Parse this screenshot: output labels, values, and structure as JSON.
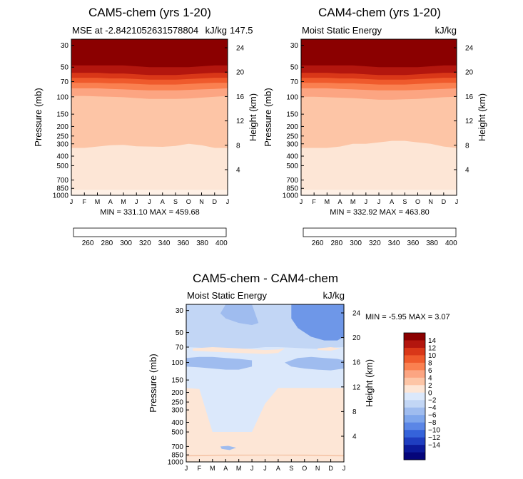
{
  "panels": [
    {
      "id": "p1",
      "title": "CAM5-chem (yrs 1-20)",
      "left_label": "MSE at -2.8421052631578804",
      "right_label": "kJ/kg",
      "overlap_label": "147.5",
      "min_max_text": "MIN = 331.10 MAX = 459.68",
      "bands": [
        {
          "top": [
            30,
            30,
            30,
            30,
            30,
            30,
            30,
            30,
            30,
            30,
            30,
            30,
            30
          ],
          "color": "#8b0000"
        },
        {
          "top": [
            48,
            48,
            48,
            48,
            48,
            49,
            50,
            50,
            50,
            50,
            49,
            48,
            48
          ],
          "color": "#b3160e"
        },
        {
          "top": [
            57,
            57,
            57,
            58,
            58,
            59,
            60,
            60,
            60,
            59,
            58,
            57,
            57
          ],
          "color": "#d93718"
        },
        {
          "top": [
            64,
            64,
            64,
            65,
            65,
            66,
            67,
            67,
            67,
            66,
            65,
            64,
            64
          ],
          "color": "#ef5a2c"
        },
        {
          "top": [
            72,
            72,
            72,
            73,
            73,
            74,
            75,
            75,
            75,
            74,
            73,
            72,
            72
          ],
          "color": "#fa8050"
        },
        {
          "top": [
            82,
            82,
            82,
            83,
            84,
            85,
            86,
            86,
            86,
            85,
            84,
            83,
            82
          ],
          "color": "#fca582"
        },
        {
          "top": [
            98,
            98,
            99,
            100,
            101,
            103,
            105,
            105,
            105,
            104,
            102,
            100,
            98
          ],
          "color": "#fdc5a6"
        },
        {
          "top": [
            330,
            330,
            320,
            310,
            308,
            318,
            320,
            322,
            315,
            300,
            310,
            330,
            330
          ],
          "color": "#fde6d6"
        },
        {
          "top": [
            880,
            880,
            880,
            880,
            880,
            880,
            880,
            880,
            880,
            880,
            880,
            880,
            880
          ],
          "color": "#fef0e6"
        }
      ]
    },
    {
      "id": "p2",
      "title": "CAM4-chem (yrs 1-20)",
      "left_label": "Moist Static Energy",
      "right_label": "kJ/kg",
      "min_max_text": "MIN = 332.92 MAX = 463.80",
      "bands": [
        {
          "top": [
            30,
            30,
            30,
            30,
            30,
            30,
            30,
            30,
            30,
            30,
            30,
            30,
            30
          ],
          "color": "#8b0000"
        },
        {
          "top": [
            48,
            48,
            48,
            48,
            48,
            49,
            50,
            50,
            50,
            50,
            49,
            48,
            48
          ],
          "color": "#b3160e"
        },
        {
          "top": [
            57,
            57,
            57,
            58,
            58,
            59,
            60,
            60,
            60,
            59,
            58,
            57,
            57
          ],
          "color": "#d93718"
        },
        {
          "top": [
            64,
            64,
            64,
            65,
            65,
            66,
            67,
            67,
            67,
            66,
            65,
            64,
            64
          ],
          "color": "#ef5a2c"
        },
        {
          "top": [
            72,
            72,
            72,
            73,
            73,
            74,
            75,
            75,
            75,
            74,
            73,
            72,
            72
          ],
          "color": "#fa8050"
        },
        {
          "top": [
            82,
            82,
            82,
            83,
            84,
            85,
            86,
            86,
            86,
            85,
            84,
            83,
            82
          ],
          "color": "#fca582"
        },
        {
          "top": [
            100,
            100,
            101,
            102,
            103,
            105,
            107,
            107,
            106,
            105,
            103,
            101,
            100
          ],
          "color": "#fdc5a6"
        },
        {
          "top": [
            330,
            330,
            330,
            320,
            300,
            300,
            290,
            280,
            280,
            290,
            300,
            320,
            330
          ],
          "color": "#fde6d6"
        },
        {
          "top": [
            880,
            880,
            880,
            880,
            880,
            880,
            880,
            880,
            880,
            880,
            880,
            880,
            880
          ],
          "color": "#fef0e6"
        }
      ]
    },
    {
      "id": "p3",
      "title": "CAM5-chem - CAM4-chem",
      "left_label": "Moist Static Energy",
      "right_label": "kJ/kg",
      "min_max_text": "MIN =    -5.95 MAX =     3.07",
      "bands": [
        {
          "top": [
            30,
            30,
            30,
            30,
            30,
            30,
            30,
            30,
            30,
            30,
            30,
            30,
            30
          ],
          "color": "#c2d6f5"
        },
        {
          "top": [
            70,
            71,
            72,
            74,
            73,
            72,
            70,
            70,
            71,
            72,
            73,
            71,
            70
          ],
          "color": "#dbe8fb"
        },
        {
          "top": [
            180,
            185,
            500,
            500,
            500,
            500,
            260,
            180,
            180,
            180,
            180,
            180,
            180
          ],
          "color": "#fde6d6"
        },
        {
          "top": [
            1000,
            1000,
            1000,
            1000,
            1000,
            1000,
            1000,
            1000,
            1000,
            1000,
            1000,
            1000,
            1000
          ],
          "color": "#dbe8fb"
        }
      ],
      "blobs": [
        {
          "month": [
            0,
            1.5,
            3,
            4.5,
            6,
            7.5,
            9,
            9.6,
            7.5,
            6,
            4.5,
            3,
            1.5,
            0
          ],
          "p": [
            40,
            40,
            40,
            50,
            50,
            50,
            50,
            40,
            40,
            40,
            40,
            40,
            40,
            40
          ],
          "color": "#c2d6f5"
        },
        {
          "month": [
            8,
            9,
            10,
            11,
            12,
            12,
            11.5,
            10.5,
            9.5,
            8.5,
            8
          ],
          "p": [
            30,
            30,
            30,
            30,
            30,
            55,
            60,
            60,
            55,
            45,
            36
          ],
          "color": "#6e97e8"
        },
        {
          "month": [
            3,
            4,
            5,
            5.5,
            5,
            4,
            3,
            2.6
          ],
          "p": [
            30,
            30,
            30,
            40,
            42,
            40,
            36,
            32
          ],
          "color": "#9fbcef"
        },
        {
          "month": [
            0,
            1,
            2,
            3,
            4,
            5,
            5,
            4,
            3,
            2,
            1,
            0
          ],
          "p": [
            90,
            88,
            88,
            90,
            92,
            95,
            110,
            118,
            118,
            115,
            112,
            110
          ],
          "color": "#9fbcef"
        },
        {
          "month": [
            7.5,
            8.5,
            9.5,
            10.5,
            11.5,
            12,
            12,
            11,
            10,
            9,
            8
          ],
          "p": [
            100,
            90,
            88,
            90,
            92,
            95,
            115,
            120,
            118,
            115,
            110
          ],
          "color": "#9fbcef"
        },
        {
          "month": [
            0.5,
            2,
            4,
            6,
            7,
            7.5,
            7,
            6,
            4,
            2,
            0.5
          ],
          "p": [
            72,
            70,
            72,
            75,
            74,
            72,
            80,
            82,
            80,
            78,
            76
          ],
          "color": "#fde6d6"
        },
        {
          "month": [
            10,
            11,
            11.8,
            11,
            10
          ],
          "p": [
            72,
            70,
            72,
            76,
            75
          ],
          "color": "#fde6d6"
        },
        {
          "month": [
            0,
            0.5,
            1,
            1,
            0.5,
            0
          ],
          "p": [
            190,
            195,
            220,
            280,
            300,
            290
          ],
          "color": "#fde6d6"
        },
        {
          "month": [
            6,
            8,
            9,
            10,
            11,
            11.6,
            12,
            12,
            11,
            10,
            9,
            8,
            7,
            6.2,
            6
          ],
          "p": [
            540,
            520,
            520,
            530,
            540,
            560,
            550,
            600,
            640,
            650,
            620,
            600,
            600,
            580,
            560
          ],
          "color": "#fde6d6"
        },
        {
          "month": [
            2.6,
            3.2,
            3.8,
            3.3,
            2.7
          ],
          "p": [
            700,
            690,
            720,
            760,
            740
          ],
          "color": "#9fbcef"
        },
        {
          "month": [
            0,
            2,
            4,
            6,
            8,
            10,
            12,
            12,
            10,
            8,
            6,
            4,
            2,
            0
          ],
          "p": [
            800,
            790,
            790,
            795,
            790,
            790,
            795,
            910,
            890,
            880,
            890,
            900,
            890,
            910
          ],
          "color": "#fde6d6"
        },
        {
          "month": [
            0,
            3,
            6,
            9,
            12,
            12,
            9,
            6,
            3,
            0
          ],
          "p": [
            850,
            845,
            845,
            845,
            850,
            880,
            870,
            865,
            870,
            880
          ],
          "color": "#f6c9ad"
        }
      ]
    }
  ],
  "axes": {
    "pressure_ticks": [
      "30",
      "50",
      "70",
      "100",
      "150",
      "200",
      "250",
      "300",
      "400",
      "500",
      "700",
      "850",
      "1000"
    ],
    "height_ticks": [
      "24",
      "20",
      "16",
      "12",
      "8",
      "4"
    ],
    "month_ticks": [
      "J",
      "F",
      "M",
      "A",
      "M",
      "J",
      "J",
      "A",
      "S",
      "O",
      "N",
      "D",
      "J"
    ],
    "ylabel": "Pressure (mb)",
    "y2label": "Height (km)"
  },
  "colorbar_top": {
    "colors": [
      "#08088a",
      "#1a2fb8",
      "#2d55d6",
      "#4278e6",
      "#6e97e8",
      "#9fbcef",
      "#c8d9f7",
      "#f0f4fc",
      "#fde6d6",
      "#fcc6a7",
      "#fca07a",
      "#f77a50",
      "#e54d25",
      "#c42812",
      "#960a05",
      "#700000"
    ],
    "labels": [
      "260",
      "280",
      "300",
      "320",
      "340",
      "360",
      "380",
      "400"
    ]
  },
  "colorbar_diff": {
    "colors": [
      "#8b0000",
      "#b3160e",
      "#d93718",
      "#ef5a2c",
      "#fa8050",
      "#fca582",
      "#fdc5a6",
      "#fde6d6",
      "#dbe8fb",
      "#c2d6f5",
      "#9fbcef",
      "#7fa6ec",
      "#5b86e6",
      "#3563da",
      "#1f3ec0",
      "#0c1a9a",
      "#05057a"
    ],
    "labels": [
      "14",
      "12",
      "10",
      "8",
      "6",
      "4",
      "2",
      "0",
      "−2",
      "−4",
      "−6",
      "−8",
      "−10",
      "−12",
      "−14"
    ]
  },
  "chart_data": [
    {
      "type": "heatmap",
      "title": "CAM5-chem (yrs 1-20)",
      "subtitle": "MSE at -2.8421052631578804",
      "units": "kJ/kg",
      "x": [
        "J",
        "F",
        "M",
        "A",
        "M",
        "J",
        "J",
        "A",
        "S",
        "O",
        "N",
        "D",
        "J"
      ],
      "y": [
        30,
        50,
        70,
        100,
        150,
        200,
        250,
        300,
        400,
        500,
        700,
        850,
        1000
      ],
      "xlabel": "",
      "ylabel": "Pressure (mb)",
      "y2label": "Height (km)",
      "min": 331.1,
      "max": 459.68
    },
    {
      "type": "heatmap",
      "title": "CAM4-chem (yrs 1-20)",
      "subtitle": "Moist Static Energy",
      "units": "kJ/kg",
      "x": [
        "J",
        "F",
        "M",
        "A",
        "M",
        "J",
        "J",
        "A",
        "S",
        "O",
        "N",
        "D",
        "J"
      ],
      "y": [
        30,
        50,
        70,
        100,
        150,
        200,
        250,
        300,
        400,
        500,
        700,
        850,
        1000
      ],
      "xlabel": "",
      "ylabel": "Pressure (mb)",
      "y2label": "Height (km)",
      "min": 332.92,
      "max": 463.8
    },
    {
      "type": "heatmap",
      "title": "CAM5-chem - CAM4-chem",
      "subtitle": "Moist Static Energy",
      "units": "kJ/kg",
      "x": [
        "J",
        "F",
        "M",
        "A",
        "M",
        "J",
        "J",
        "A",
        "S",
        "O",
        "N",
        "D",
        "J"
      ],
      "y": [
        30,
        50,
        70,
        100,
        150,
        200,
        250,
        300,
        400,
        500,
        700,
        850,
        1000
      ],
      "xlabel": "",
      "ylabel": "Pressure (mb)",
      "y2label": "Height (km)",
      "min": -5.95,
      "max": 3.07
    }
  ]
}
